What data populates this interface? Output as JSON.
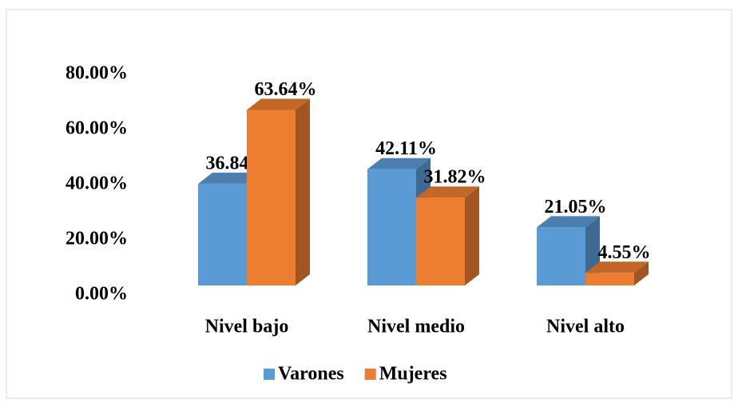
{
  "chart_data": {
    "type": "bar3d",
    "categories": [
      "Nivel bajo",
      "Nivel medio",
      "Nivel alto"
    ],
    "series": [
      {
        "name": "Varones",
        "color": "#5b9bd5",
        "values": [
          36.84,
          42.11,
          21.05
        ],
        "value_labels": [
          "36.84%",
          "42.11%",
          "21.05%"
        ]
      },
      {
        "name": "Mujeres",
        "color": "#ed7d31",
        "values": [
          63.64,
          31.82,
          4.55
        ],
        "value_labels": [
          "63.64%",
          "31.82%",
          "4.55%"
        ]
      }
    ],
    "ylim": [
      0,
      80
    ],
    "yticks": [
      {
        "value": 0,
        "label": "0.00%"
      },
      {
        "value": 20,
        "label": "20.00%"
      },
      {
        "value": 40,
        "label": "40.00%"
      },
      {
        "value": 60,
        "label": "60.00%"
      },
      {
        "value": 80,
        "label": "80.00%"
      }
    ],
    "legend": "bottom"
  }
}
